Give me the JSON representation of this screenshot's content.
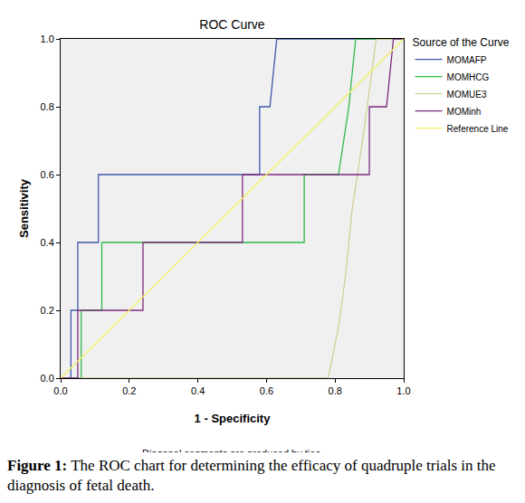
{
  "chart_data": {
    "type": "line",
    "title": "ROC Curve",
    "x_label": "1 - Specificity",
    "y_label": "Sensitivity",
    "legend_title": "Source of the Curve",
    "legend": "right",
    "annotations": [
      "Diagonal segments are produced by ties."
    ],
    "xlim": [
      0,
      1
    ],
    "ylim": [
      0,
      1
    ],
    "xticks": [
      {
        "value": 0,
        "label": "0.0"
      },
      0.2,
      0.4,
      0.6,
      0.8,
      {
        "value": 1,
        "label": "1.0"
      }
    ],
    "yticks": [
      {
        "value": 0,
        "label": "0.0"
      },
      0.2,
      0.4,
      0.6,
      0.8,
      {
        "value": 1,
        "label": "1.0"
      }
    ],
    "grid": false,
    "series": [
      {
        "name": "MOMAFP",
        "color": "#3e58ac",
        "x": [
          0,
          0.03,
          0.03,
          0.05,
          0.05,
          0.11,
          0.11,
          0.58,
          0.58,
          0.61,
          0.63,
          1
        ],
        "values": [
          0,
          0,
          0.2,
          0.2,
          0.4,
          0.4,
          0.6,
          0.6,
          0.8,
          0.8,
          1,
          1
        ]
      },
      {
        "name": "MOMHCG",
        "color": "#2eb848",
        "x": [
          0,
          0.06,
          0.06,
          0.12,
          0.12,
          0.71,
          0.71,
          0.81,
          0.84,
          0.86,
          1
        ],
        "values": [
          0,
          0,
          0.2,
          0.2,
          0.4,
          0.4,
          0.6,
          0.6,
          0.8,
          1,
          1
        ]
      },
      {
        "name": "MOMUE3",
        "color": "#d3ce97",
        "x": [
          0,
          0.78,
          0.81,
          0.83,
          0.85,
          0.88,
          0.92,
          1
        ],
        "values": [
          0,
          0,
          0.15,
          0.3,
          0.5,
          0.7,
          1,
          1
        ]
      },
      {
        "name": "MOMinh",
        "color": "#7c2a7c",
        "x": [
          0,
          0.05,
          0.05,
          0.24,
          0.24,
          0.53,
          0.53,
          0.9,
          0.9,
          0.95,
          0.97,
          1
        ],
        "values": [
          0,
          0,
          0.2,
          0.2,
          0.4,
          0.4,
          0.6,
          0.6,
          0.8,
          0.8,
          1,
          1
        ]
      },
      {
        "name": "Reference Line",
        "color": "#f5f064",
        "x": [
          0,
          1
        ],
        "values": [
          0,
          1
        ]
      }
    ]
  },
  "caption": {
    "label": "Figure 1:",
    "text": "The ROC chart for determining the efficacy of quadruple trials in the diagnosis of fetal death."
  }
}
